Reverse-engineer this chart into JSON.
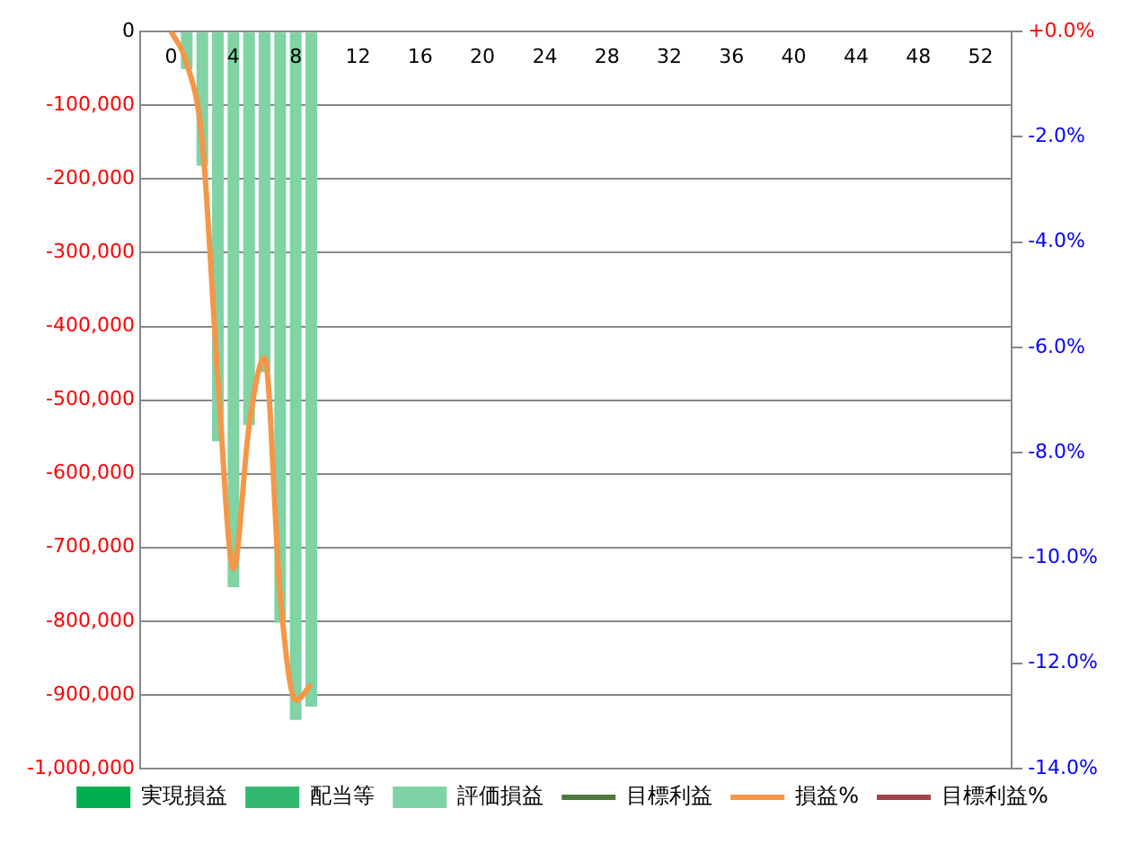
{
  "chart_data": {
    "type": "bar",
    "x": [
      1,
      2,
      3,
      4,
      5,
      6,
      7,
      8,
      9
    ],
    "series": [
      {
        "name": "実現損益",
        "type": "bar",
        "color": "#00b050",
        "values": [
          null,
          null,
          null,
          null,
          null,
          null,
          null,
          null,
          null
        ]
      },
      {
        "name": "配当等",
        "type": "bar",
        "color": "#33b870",
        "values": [
          null,
          null,
          null,
          null,
          null,
          null,
          null,
          null,
          null
        ]
      },
      {
        "name": "評価損益",
        "color": "#7fd3a4",
        "values": [
          -51000,
          -182000,
          -556000,
          -754000,
          -534000,
          -462000,
          -802000,
          -934000,
          -916000
        ]
      },
      {
        "name": "目標利益",
        "type": "line",
        "color": "#4e7a3e",
        "values": [
          null,
          null,
          null,
          null,
          null,
          null,
          null,
          null,
          null
        ]
      },
      {
        "name": "損益%",
        "type": "line",
        "axis": "y2",
        "color": "#f79646",
        "x": [
          0,
          1,
          2,
          3,
          4,
          5,
          6,
          7,
          8,
          9
        ],
        "values": [
          0,
          -0.6,
          -2.1,
          -6.6,
          -10.2,
          -7.5,
          -6.2,
          -10.7,
          -12.7,
          -12.4
        ]
      },
      {
        "name": "目標利益%",
        "type": "line",
        "axis": "y2",
        "color": "#a0454a",
        "values": [
          null,
          null,
          null,
          null,
          null,
          null,
          null,
          null,
          null
        ]
      }
    ],
    "xlim": [
      0,
      52
    ],
    "xticks": [
      0,
      4,
      8,
      12,
      16,
      20,
      24,
      28,
      32,
      36,
      40,
      44,
      48,
      52
    ],
    "ylim": [
      -1000000,
      0
    ],
    "yticks": [
      {
        "value": -1000000,
        "label": "-1,000,000"
      },
      {
        "value": -900000,
        "label": "-900,000"
      },
      {
        "value": -800000,
        "label": "-800,000"
      },
      {
        "value": -700000,
        "label": "-700,000"
      },
      {
        "value": -600000,
        "label": "-600,000"
      },
      {
        "value": -500000,
        "label": "-500,000"
      },
      {
        "value": -400000,
        "label": "-400,000"
      },
      {
        "value": -300000,
        "label": "-300,000"
      },
      {
        "value": -200000,
        "label": "-200,000"
      },
      {
        "value": -100000,
        "label": "-100,000"
      },
      0
    ],
    "y2lim": [
      -14,
      0
    ],
    "y2ticks": [
      {
        "value": -14,
        "label": "-14.0%"
      },
      {
        "value": -12,
        "label": "-12.0%"
      },
      {
        "value": -10,
        "label": "-10.0%"
      },
      {
        "value": -8,
        "label": "-8.0%"
      },
      {
        "value": -6,
        "label": "-6.0%"
      },
      {
        "value": -4,
        "label": "-4.0%"
      },
      {
        "value": -2,
        "label": "-2.0%"
      },
      {
        "value": 0,
        "label": "+0.0%"
      }
    ],
    "grid": "y",
    "legend": "bottom"
  }
}
